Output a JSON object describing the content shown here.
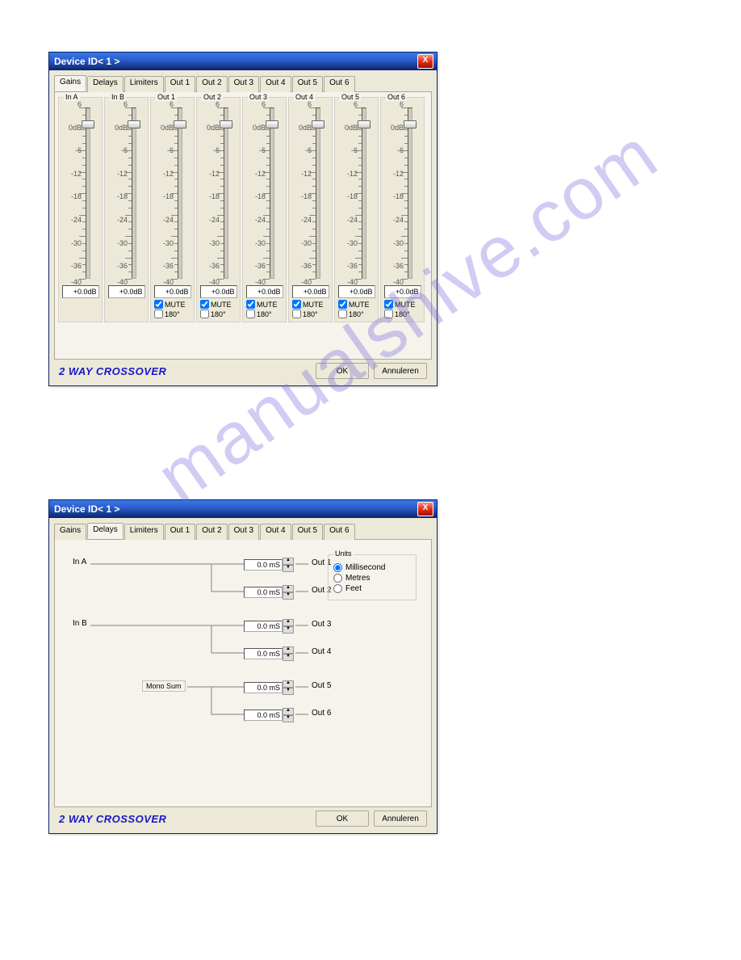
{
  "watermark": "manualshive.com",
  "window": {
    "title": "Device ID< 1 >",
    "close": "X"
  },
  "tabs": [
    "Gains",
    "Delays",
    "Limiters",
    "Out 1",
    "Out 2",
    "Out 3",
    "Out 4",
    "Out 5",
    "Out 6"
  ],
  "gains": {
    "channels": [
      {
        "name": "In A",
        "value": "+0.0dB",
        "has_mute": false
      },
      {
        "name": "In B",
        "value": "+0.0dB",
        "has_mute": false
      },
      {
        "name": "Out 1",
        "value": "+0.0dB",
        "has_mute": true,
        "mute": true,
        "phase": false
      },
      {
        "name": "Out 2",
        "value": "+0.0dB",
        "has_mute": true,
        "mute": true,
        "phase": false
      },
      {
        "name": "Out 3",
        "value": "+0.0dB",
        "has_mute": true,
        "mute": true,
        "phase": false
      },
      {
        "name": "Out 4",
        "value": "+0.0dB",
        "has_mute": true,
        "mute": true,
        "phase": false
      },
      {
        "name": "Out 5",
        "value": "+0.0dB",
        "has_mute": true,
        "mute": true,
        "phase": false
      },
      {
        "name": "Out 6",
        "value": "+0.0dB",
        "has_mute": true,
        "mute": true,
        "phase": false
      }
    ],
    "scale_labels": [
      "6",
      "0dB",
      "-6",
      "-12",
      "-18",
      "-24",
      "-30",
      "-36",
      "-40"
    ],
    "scale_positions": [
      0,
      13,
      26,
      39,
      52,
      65,
      78,
      91,
      100
    ],
    "mute_label": "MUTE",
    "phase_label": "180°",
    "thumb_pos_pct": 11
  },
  "delays": {
    "inputs": {
      "ina": "In A",
      "inb": "In B",
      "mono": "Mono Sum"
    },
    "outs": [
      {
        "label": "Out 1",
        "value": "0.0 mS"
      },
      {
        "label": "Out 2",
        "value": "0.0 mS"
      },
      {
        "label": "Out 3",
        "value": "0.0 mS"
      },
      {
        "label": "Out 4",
        "value": "0.0 mS"
      },
      {
        "label": "Out 5",
        "value": "0.0 mS"
      },
      {
        "label": "Out 6",
        "value": "0.0 mS"
      }
    ],
    "units": {
      "legend": "Units",
      "options": [
        "Millisecond",
        "Metres",
        "Feet"
      ],
      "selected": 0
    }
  },
  "footer": {
    "brand": "2 WAY CROSSOVER",
    "ok": "OK",
    "cancel": "Annuleren"
  },
  "colors": {
    "line": "#808080"
  }
}
